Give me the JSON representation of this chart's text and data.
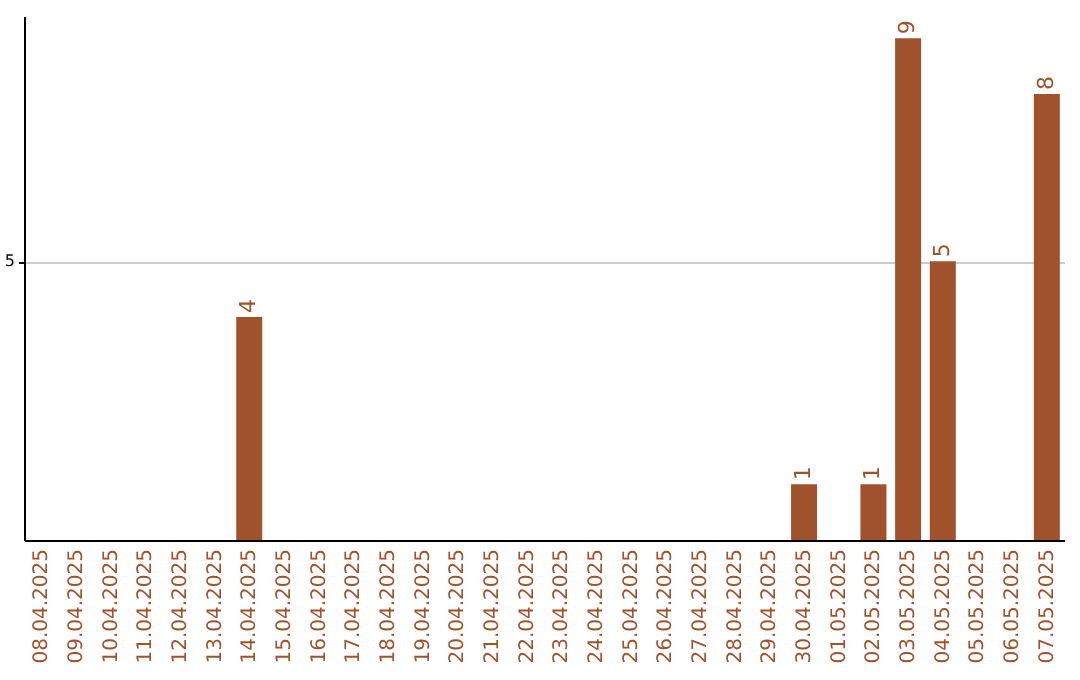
{
  "chart_data": {
    "type": "bar",
    "categories": [
      "08.04.2025",
      "09.04.2025",
      "10.04.2025",
      "11.04.2025",
      "12.04.2025",
      "13.04.2025",
      "14.04.2025",
      "15.04.2025",
      "16.04.2025",
      "17.04.2025",
      "18.04.2025",
      "19.04.2025",
      "20.04.2025",
      "21.04.2025",
      "22.04.2025",
      "23.04.2025",
      "24.04.2025",
      "25.04.2025",
      "26.04.2025",
      "27.04.2025",
      "28.04.2025",
      "29.04.2025",
      "30.04.2025",
      "01.05.2025",
      "02.05.2025",
      "03.05.2025",
      "04.05.2025",
      "05.05.2025",
      "06.05.2025",
      "07.05.2025"
    ],
    "values": [
      null,
      null,
      null,
      null,
      null,
      null,
      4,
      null,
      null,
      null,
      null,
      null,
      null,
      null,
      null,
      null,
      null,
      null,
      null,
      null,
      null,
      null,
      1,
      null,
      1,
      9,
      5,
      null,
      null,
      8
    ],
    "color": "#a0522d",
    "ylim": [
      0,
      9.4
    ],
    "yticks": [
      5
    ],
    "grid": "y",
    "data_labels": true
  }
}
